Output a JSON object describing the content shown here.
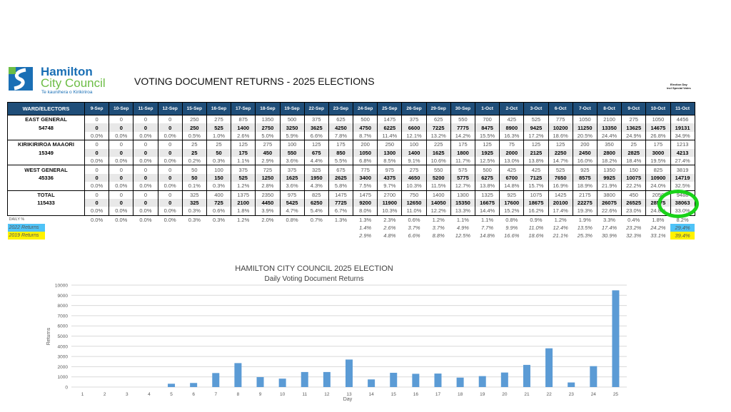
{
  "logo": {
    "line1": "Hamilton",
    "line2": "City Council",
    "line3": "Te kaunihera o Kirikiriroa"
  },
  "title": "VOTING DOCUMENT RETURNS - 2025 ELECTIONS",
  "election_day_note": {
    "line1": "Election Day",
    "line2": "incl Special Votes"
  },
  "table": {
    "header": "WARD/ELECTORS",
    "columns": [
      "9-Sep",
      "10-Sep",
      "11-Sep",
      "12-Sep",
      "15-Sep",
      "16-Sep",
      "17-Sep",
      "18-Sep",
      "19-Sep",
      "22-Sep",
      "23-Sep",
      "24-Sep",
      "25-Sep",
      "26-Sep",
      "29-Sep",
      "30-Sep",
      "1-Oct",
      "2-Oct",
      "3-Oct",
      "6-Oct",
      "7-Oct",
      "8-Oct",
      "9-Oct",
      "10-Oct",
      "11-Oct"
    ],
    "groups": [
      {
        "name": "EAST  GENERAL",
        "electors": "54748",
        "daily": [
          "0",
          "0",
          "0",
          "0",
          "250",
          "275",
          "875",
          "1350",
          "500",
          "375",
          "625",
          "500",
          "1475",
          "375",
          "625",
          "550",
          "700",
          "425",
          "525",
          "775",
          "1050",
          "2100",
          "275",
          "1050",
          "4456"
        ],
        "cumulative": [
          "0",
          "0",
          "0",
          "0",
          "250",
          "525",
          "1400",
          "2750",
          "3250",
          "3625",
          "4250",
          "4750",
          "6225",
          "6600",
          "7225",
          "7775",
          "8475",
          "8900",
          "9425",
          "10200",
          "11250",
          "13350",
          "13625",
          "14675",
          "19131"
        ],
        "pct": [
          "0.0%",
          "0.0%",
          "0.0%",
          "0.0%",
          "0.5%",
          "1.0%",
          "2.6%",
          "5.0%",
          "5.9%",
          "6.6%",
          "7.8%",
          "8.7%",
          "11.4%",
          "12.1%",
          "13.2%",
          "14.2%",
          "15.5%",
          "16.3%",
          "17.2%",
          "18.6%",
          "20.5%",
          "24.4%",
          "24.9%",
          "26.8%",
          "34.9%"
        ]
      },
      {
        "name": "KIRIKIRIROA MAAORI",
        "electors": "15349",
        "daily": [
          "0",
          "0",
          "0",
          "0",
          "25",
          "25",
          "125",
          "275",
          "100",
          "125",
          "175",
          "200",
          "250",
          "100",
          "225",
          "175",
          "125",
          "75",
          "125",
          "125",
          "200",
          "350",
          "25",
          "175",
          "1213"
        ],
        "cumulative": [
          "0",
          "0",
          "0",
          "0",
          "25",
          "50",
          "175",
          "450",
          "550",
          "675",
          "850",
          "1050",
          "1300",
          "1400",
          "1625",
          "1800",
          "1925",
          "2000",
          "2125",
          "2250",
          "2450",
          "2800",
          "2825",
          "3000",
          "4213"
        ],
        "pct": [
          "0.0%",
          "0.0%",
          "0.0%",
          "0.0%",
          "0.2%",
          "0.3%",
          "1.1%",
          "2.9%",
          "3.6%",
          "4.4%",
          "5.5%",
          "6.8%",
          "8.5%",
          "9.1%",
          "10.6%",
          "11.7%",
          "12.5%",
          "13.0%",
          "13.8%",
          "14.7%",
          "16.0%",
          "18.2%",
          "18.4%",
          "19.5%",
          "27.4%"
        ]
      },
      {
        "name": "WEST  GENERAL",
        "electors": "45336",
        "daily": [
          "0",
          "0",
          "0",
          "0",
          "50",
          "100",
          "375",
          "725",
          "375",
          "325",
          "675",
          "775",
          "975",
          "275",
          "550",
          "575",
          "500",
          "425",
          "425",
          "525",
          "925",
          "1350",
          "150",
          "825",
          "3819"
        ],
        "cumulative": [
          "0",
          "0",
          "0",
          "0",
          "50",
          "150",
          "525",
          "1250",
          "1625",
          "1950",
          "2625",
          "3400",
          "4375",
          "4650",
          "5200",
          "5775",
          "6275",
          "6700",
          "7125",
          "7650",
          "8575",
          "9925",
          "10075",
          "10900",
          "14719"
        ],
        "pct": [
          "0.0%",
          "0.0%",
          "0.0%",
          "0.0%",
          "0.1%",
          "0.3%",
          "1.2%",
          "2.8%",
          "3.6%",
          "4.3%",
          "5.8%",
          "7.5%",
          "9.7%",
          "10.3%",
          "11.5%",
          "12.7%",
          "13.8%",
          "14.8%",
          "15.7%",
          "16.9%",
          "18.9%",
          "21.9%",
          "22.2%",
          "24.0%",
          "32.5%"
        ]
      },
      {
        "name": "TOTAL",
        "electors": "115433",
        "daily": [
          "0",
          "0",
          "0",
          "0",
          "325",
          "400",
          "1375",
          "2350",
          "975",
          "825",
          "1475",
          "1475",
          "2700",
          "750",
          "1400",
          "1300",
          "1325",
          "925",
          "1075",
          "1425",
          "2175",
          "3800",
          "450",
          "2050",
          "9488"
        ],
        "cumulative": [
          "0",
          "0",
          "0",
          "0",
          "325",
          "725",
          "2100",
          "4450",
          "5425",
          "6250",
          "7725",
          "9200",
          "11900",
          "12650",
          "14050",
          "15350",
          "16675",
          "17600",
          "18675",
          "20100",
          "22275",
          "26075",
          "26525",
          "28575",
          "38063"
        ],
        "pct": [
          "0.0%",
          "0.0%",
          "0.0%",
          "0.0%",
          "0.3%",
          "0.6%",
          "1.8%",
          "3.9%",
          "4.7%",
          "5.4%",
          "6.7%",
          "8.0%",
          "10.3%",
          "11.0%",
          "12.2%",
          "13.3%",
          "14.4%",
          "15.2%",
          "16.2%",
          "17.4%",
          "19.3%",
          "22.6%",
          "23.0%",
          "24.8%",
          "33.0%"
        ]
      }
    ],
    "extra_rows": [
      {
        "label": "DAILY %",
        "italic": false,
        "highlight": "",
        "values": [
          "0.0%",
          "0.0%",
          "0.0%",
          "0.0%",
          "0.3%",
          "0.3%",
          "1.2%",
          "2.0%",
          "0.8%",
          "0.7%",
          "1.3%",
          "1.3%",
          "2.3%",
          "0.6%",
          "1.2%",
          "1.1%",
          "1.1%",
          "0.8%",
          "0.9%",
          "1.2%",
          "1.9%",
          "3.3%",
          "0.4%",
          "1.8%",
          "8.2%"
        ]
      },
      {
        "label": "2022 Returns",
        "italic": true,
        "highlight": "cyan",
        "values": [
          "",
          "",
          "",
          "",
          "",
          "",
          "",
          "",
          "",
          "",
          "",
          "1.4%",
          "2.6%",
          "3.7%",
          "3.7%",
          "4.9%",
          "7.7%",
          "9.9%",
          "11.0%",
          "12.4%",
          "13.5%",
          "17.4%",
          "23.2%",
          "24.2%",
          "29.4%"
        ]
      },
      {
        "label": "2019 Returns",
        "italic": true,
        "highlight": "yellow",
        "values": [
          "",
          "",
          "",
          "",
          "",
          "",
          "",
          "",
          "",
          "",
          "",
          "2.9%",
          "4.8%",
          "6.6%",
          "8.8%",
          "12.5%",
          "14.8%",
          "16.6%",
          "18.6%",
          "21.1%",
          "25.3%",
          "30.9%",
          "32.3%",
          "33.1%",
          "39.4%"
        ]
      }
    ]
  },
  "colors": {
    "header": "#1f4e79",
    "bar": "#5b9bd5",
    "highlight_green": "#19d219",
    "highlight_cyan": "#4fc3f7",
    "highlight_yellow": "#fff200"
  },
  "chart_data": {
    "type": "bar",
    "title": "HAMILTON CITY COUNCIL 2025 ELECTION",
    "subtitle": "Daily Voting Document Returns",
    "xlabel": "Day",
    "ylabel": "Returns",
    "categories": [
      "1",
      "2",
      "3",
      "4",
      "5",
      "6",
      "7",
      "8",
      "9",
      "10",
      "11",
      "12",
      "13",
      "14",
      "15",
      "16",
      "17",
      "18",
      "19",
      "20",
      "21",
      "22",
      "23",
      "24",
      "25"
    ],
    "values": [
      0,
      0,
      0,
      0,
      325,
      400,
      1375,
      2350,
      975,
      825,
      1475,
      1475,
      2700,
      750,
      1400,
      1300,
      1325,
      925,
      1075,
      1425,
      2175,
      3800,
      450,
      2050,
      9488
    ],
    "ylim": [
      0,
      10000
    ],
    "yticks": [
      "0",
      "1000",
      "2000",
      "3000",
      "4000",
      "5000",
      "6000",
      "7000",
      "8000",
      "9000",
      "10000"
    ],
    "grid": true,
    "legend": "none"
  }
}
